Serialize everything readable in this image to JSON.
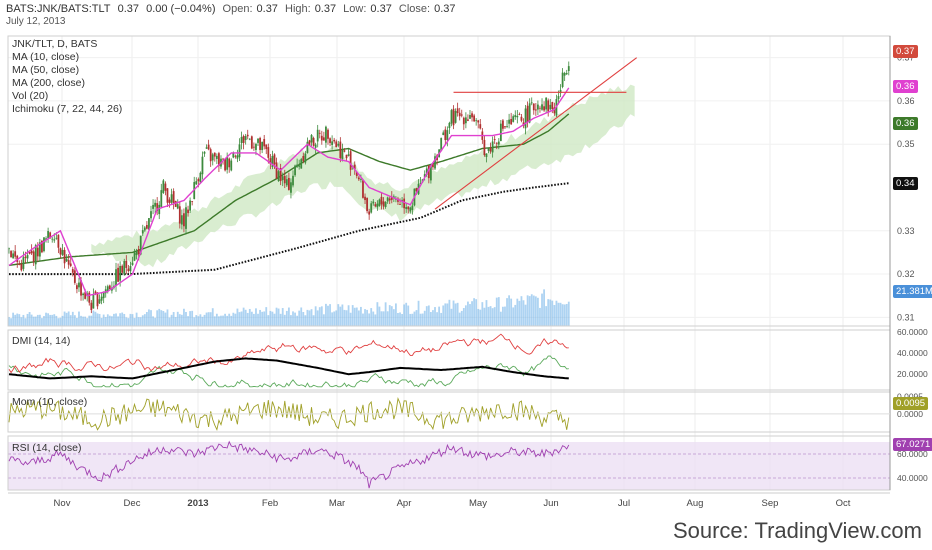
{
  "header": {
    "symbol": "BATS:JNK/BATS:TLT",
    "last": "0.37",
    "change": "0.00 (−0.04%)",
    "open_label": "Open:",
    "open": "0.37",
    "high_label": "High:",
    "high": "0.37",
    "low_label": "Low:",
    "low": "0.37",
    "close_label": "Close:",
    "close": "0.37",
    "date": "July 12, 2013"
  },
  "legend": {
    "title": "JNK/TLT, D, BATS",
    "ma10": "MA (10, close)",
    "ma50": "MA (50, close)",
    "ma200": "MA (200, close)",
    "vol": "Vol (20)",
    "ichimoku": "Ichimoku (7, 22, 44, 26)"
  },
  "panels": {
    "dmi": "DMI (14, 14)",
    "mom": "Mom (10, close)",
    "rsi": "RSI (14, close)"
  },
  "tags": {
    "last": "0.37",
    "ma10": "0.36",
    "ma50": "0.36",
    "ma200": "0.34",
    "volume": "21.381M",
    "mom": "0.0095",
    "rsi": "67.0271"
  },
  "colors": {
    "up": "#3d8a3d",
    "down": "#b03030",
    "ma10": "#e040d0",
    "ma50": "#3d7a2a",
    "ma200": "#111111",
    "cloud": "#cfe8c4",
    "volume": "#6aaee8",
    "trend": "#e04040",
    "dmi_plus": "#5caa5c",
    "dmi_minus": "#e04040",
    "adx": "#000000",
    "mom": "#a0a028",
    "rsi": "#a040b0"
  },
  "source": "Source: TradingView.com",
  "chart_data": {
    "type": "candlestick",
    "price_axis": {
      "ticks": [
        "0.37",
        "0.36",
        "0.35",
        "0.33",
        "0.32",
        "0.31"
      ],
      "ylim": [
        0.308,
        0.375
      ]
    },
    "x_labels": [
      "Nov",
      "Dec",
      "2013",
      "Feb",
      "Mar",
      "Apr",
      "May",
      "Jun",
      "Jul",
      "Aug",
      "Sep",
      "Oct"
    ],
    "price_waypoints": [
      [
        0,
        0.326
      ],
      [
        5,
        0.322
      ],
      [
        13,
        0.325
      ],
      [
        22,
        0.33
      ],
      [
        30,
        0.32
      ],
      [
        40,
        0.313
      ],
      [
        50,
        0.318
      ],
      [
        62,
        0.325
      ],
      [
        75,
        0.34
      ],
      [
        85,
        0.332
      ],
      [
        95,
        0.348
      ],
      [
        105,
        0.345
      ],
      [
        115,
        0.352
      ],
      [
        125,
        0.348
      ],
      [
        135,
        0.34
      ],
      [
        145,
        0.35
      ],
      [
        155,
        0.353
      ],
      [
        162,
        0.348
      ],
      [
        168,
        0.345
      ],
      [
        175,
        0.334
      ],
      [
        185,
        0.338
      ],
      [
        195,
        0.336
      ],
      [
        205,
        0.345
      ],
      [
        215,
        0.356
      ],
      [
        225,
        0.357
      ],
      [
        232,
        0.348
      ],
      [
        240,
        0.354
      ],
      [
        250,
        0.356
      ],
      [
        258,
        0.36
      ],
      [
        265,
        0.358
      ],
      [
        272,
        0.37
      ]
    ],
    "ma10_waypoints": [
      [
        0,
        0.322
      ],
      [
        12,
        0.326
      ],
      [
        25,
        0.33
      ],
      [
        38,
        0.315
      ],
      [
        48,
        0.316
      ],
      [
        60,
        0.32
      ],
      [
        72,
        0.335
      ],
      [
        85,
        0.337
      ],
      [
        95,
        0.342
      ],
      [
        108,
        0.348
      ],
      [
        120,
        0.348
      ],
      [
        132,
        0.344
      ],
      [
        145,
        0.35
      ],
      [
        155,
        0.347
      ],
      [
        165,
        0.346
      ],
      [
        175,
        0.34
      ],
      [
        185,
        0.338
      ],
      [
        195,
        0.336
      ],
      [
        205,
        0.345
      ],
      [
        215,
        0.352
      ],
      [
        225,
        0.352
      ],
      [
        235,
        0.352
      ],
      [
        245,
        0.353
      ],
      [
        255,
        0.356
      ],
      [
        265,
        0.358
      ],
      [
        272,
        0.363
      ]
    ],
    "ma50_waypoints": [
      [
        0,
        0.322
      ],
      [
        30,
        0.324
      ],
      [
        60,
        0.325
      ],
      [
        90,
        0.33
      ],
      [
        110,
        0.337
      ],
      [
        130,
        0.342
      ],
      [
        150,
        0.348
      ],
      [
        165,
        0.349
      ],
      [
        180,
        0.346
      ],
      [
        195,
        0.344
      ],
      [
        210,
        0.346
      ],
      [
        230,
        0.349
      ],
      [
        250,
        0.35
      ],
      [
        262,
        0.353
      ],
      [
        272,
        0.357
      ]
    ],
    "ma200_waypoints": [
      [
        0,
        0.32
      ],
      [
        60,
        0.32
      ],
      [
        100,
        0.321
      ],
      [
        140,
        0.326
      ],
      [
        170,
        0.33
      ],
      [
        200,
        0.333
      ],
      [
        220,
        0.337
      ],
      [
        240,
        0.339
      ],
      [
        255,
        0.34
      ],
      [
        272,
        0.341
      ]
    ],
    "cloud_waypoints": [
      [
        40,
        0.327,
        0.325
      ],
      [
        70,
        0.33,
        0.322
      ],
      [
        100,
        0.337,
        0.33
      ],
      [
        130,
        0.346,
        0.336
      ],
      [
        145,
        0.349,
        0.34
      ],
      [
        160,
        0.349,
        0.341
      ],
      [
        175,
        0.342,
        0.335
      ],
      [
        190,
        0.34,
        0.333
      ],
      [
        210,
        0.344,
        0.337
      ],
      [
        230,
        0.348,
        0.34
      ],
      [
        250,
        0.353,
        0.344
      ],
      [
        270,
        0.358,
        0.347
      ],
      [
        290,
        0.362,
        0.352
      ],
      [
        305,
        0.364,
        0.357
      ]
    ],
    "trendlines": [
      {
        "x1": 207,
        "y1": 0.335,
        "x2": 305,
        "y2": 0.37
      },
      {
        "x1": 216,
        "y1": 0.362,
        "x2": 300,
        "y2": 0.362
      }
    ],
    "volume_waypoints": [
      [
        0,
        0.3
      ],
      [
        50,
        0.35
      ],
      [
        100,
        0.4
      ],
      [
        160,
        0.5
      ],
      [
        200,
        0.55
      ],
      [
        240,
        0.65
      ],
      [
        260,
        0.8
      ],
      [
        272,
        0.85
      ]
    ],
    "dmi_axis": {
      "ticks": [
        "60.0000",
        "40.0000",
        "20.0000"
      ],
      "ylim": [
        5,
        62
      ]
    },
    "adx_waypoints": [
      [
        0,
        20
      ],
      [
        20,
        16
      ],
      [
        40,
        18
      ],
      [
        60,
        16
      ],
      [
        80,
        24
      ],
      [
        100,
        32
      ],
      [
        115,
        35
      ],
      [
        130,
        33
      ],
      [
        150,
        26
      ],
      [
        165,
        20
      ],
      [
        175,
        22
      ],
      [
        190,
        26
      ],
      [
        210,
        24
      ],
      [
        230,
        27
      ],
      [
        245,
        22
      ],
      [
        260,
        18
      ],
      [
        272,
        16
      ]
    ],
    "mom_axis": {
      "ticks": [
        "0.0095",
        "0.0000"
      ],
      "ylim": [
        -0.01,
        0.012
      ]
    },
    "rsi_axis": {
      "ticks": [
        "60.0000",
        "40.0000"
      ],
      "ylim": [
        30,
        75
      ]
    },
    "rsi_waypoints": [
      [
        0,
        55
      ],
      [
        10,
        52
      ],
      [
        25,
        60
      ],
      [
        35,
        48
      ],
      [
        45,
        40
      ],
      [
        60,
        55
      ],
      [
        75,
        65
      ],
      [
        90,
        60
      ],
      [
        105,
        68
      ],
      [
        120,
        62
      ],
      [
        135,
        55
      ],
      [
        150,
        64
      ],
      [
        160,
        58
      ],
      [
        170,
        48
      ],
      [
        175,
        35
      ],
      [
        190,
        48
      ],
      [
        205,
        58
      ],
      [
        215,
        66
      ],
      [
        225,
        60
      ],
      [
        235,
        58
      ],
      [
        245,
        62
      ],
      [
        260,
        60
      ],
      [
        272,
        67
      ]
    ]
  }
}
